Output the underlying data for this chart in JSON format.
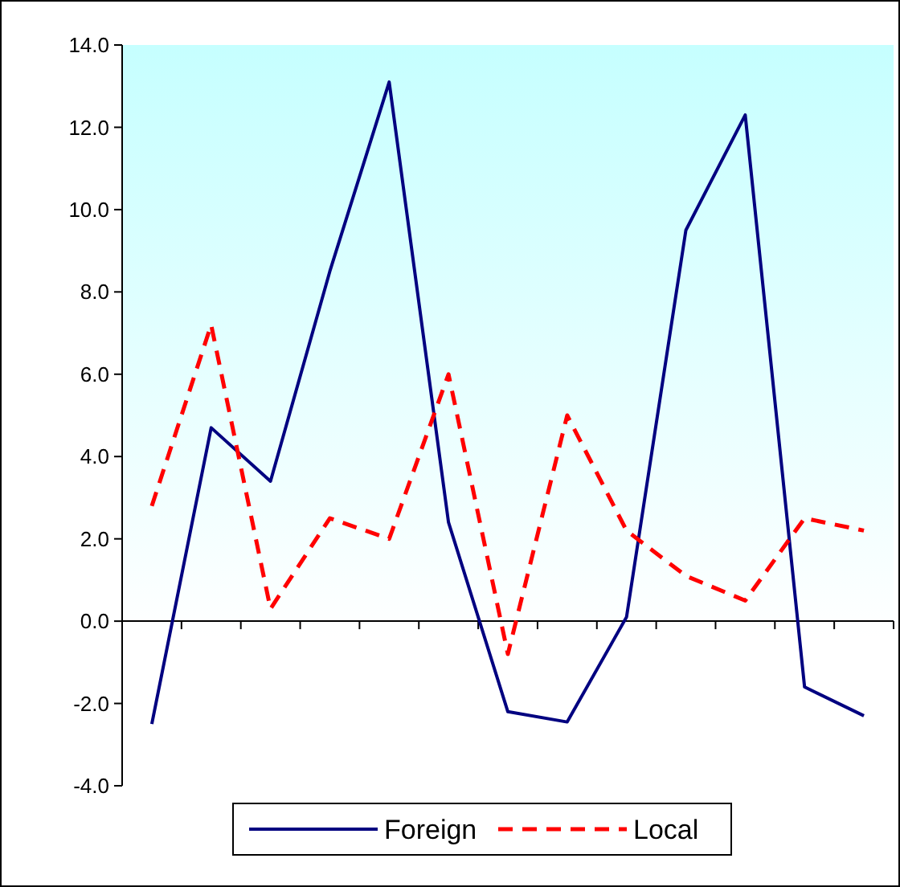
{
  "chart_data": {
    "type": "line",
    "categories": [
      null,
      null,
      null,
      null,
      null,
      null,
      null,
      null,
      null,
      null,
      null,
      null,
      null
    ],
    "series": [
      {
        "name": "Foreign",
        "color": "#000080",
        "line_style": "solid",
        "values": [
          -2.5,
          4.7,
          3.4,
          8.5,
          13.1,
          2.4,
          -2.2,
          -2.45,
          0.1,
          9.5,
          12.3,
          -1.6,
          -2.3
        ]
      },
      {
        "name": "Local",
        "color": "#ff0000",
        "line_style": "dashed",
        "values": [
          2.8,
          7.2,
          0.3,
          2.5,
          2.0,
          6.0,
          -0.8,
          5.0,
          2.2,
          1.1,
          0.5,
          2.5,
          2.2
        ]
      }
    ],
    "ylim": [
      -4,
      14
    ],
    "yticks": [
      {
        "value": -4,
        "label": "-4.0"
      },
      {
        "value": -2,
        "label": "-2.0"
      },
      {
        "value": 0,
        "label": "0.0"
      },
      {
        "value": 2,
        "label": "2.0"
      },
      {
        "value": 4,
        "label": "4.0"
      },
      {
        "value": 6,
        "label": "6.0"
      },
      {
        "value": 8,
        "label": "8.0"
      },
      {
        "value": 10,
        "label": "10.0"
      },
      {
        "value": 12,
        "label": "12.0"
      },
      {
        "value": 14,
        "label": "14.0"
      }
    ],
    "legend": "bottom"
  }
}
